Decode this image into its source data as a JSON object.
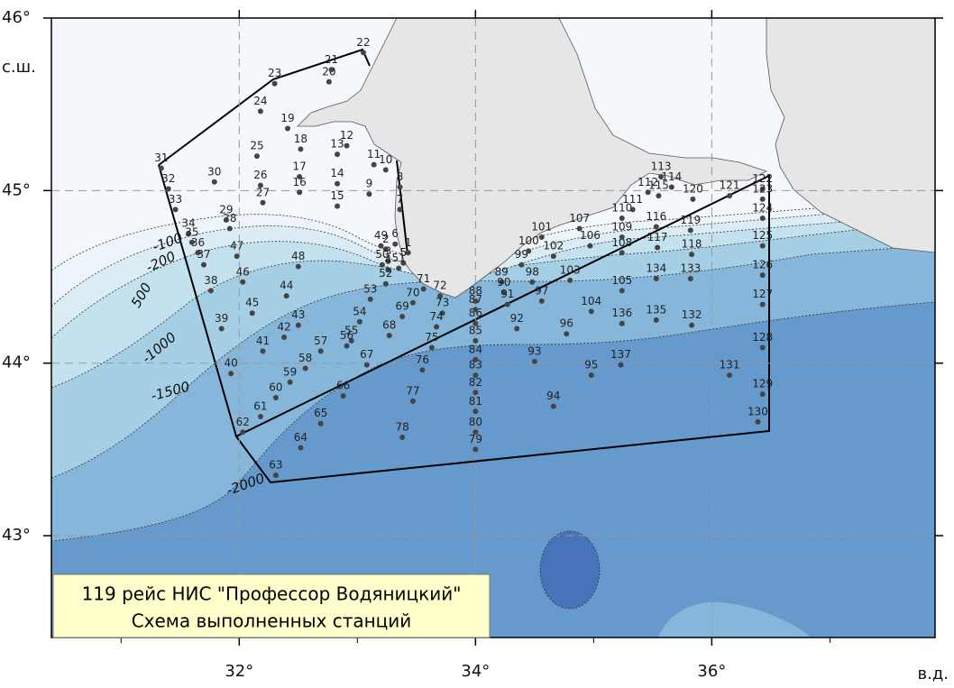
{
  "title_lines": [
    "119 рейс НИС \"Профессор Водяницкий\"",
    "Схема выполненных станций"
  ],
  "map": {
    "xlim": [
      30.41,
      37.89
    ],
    "ylim": [
      42.41,
      46.0
    ],
    "xticks": [
      {
        "value": 32,
        "label": "32°"
      },
      {
        "value": 34,
        "label": "34°"
      },
      {
        "value": 36,
        "label": "36°"
      }
    ],
    "yticks": [
      {
        "value": 43,
        "label": "43°"
      },
      {
        "value": 44,
        "label": "44°"
      },
      {
        "value": 45,
        "label": "45°"
      },
      {
        "value": 46,
        "label": "46°"
      }
    ],
    "x_minor_ticks": [
      31,
      33,
      35,
      37
    ],
    "x_label": "в.д.",
    "y_label": "с.ш.",
    "grid": true,
    "station_color": "#444"
  },
  "contour_labels": [
    "-100",
    "-200",
    "500",
    "-1000",
    "-1500",
    "-2000"
  ],
  "stations": [
    {
      "label": "1",
      "lon": 33.43,
      "lat": 44.64
    },
    {
      "label": "2",
      "lon": 33.24,
      "lat": 44.66
    },
    {
      "label": "3",
      "lon": 33.26,
      "lat": 44.59
    },
    {
      "label": "4",
      "lon": 33.26,
      "lat": 44.54
    },
    {
      "label": "5",
      "lon": 33.39,
      "lat": 44.58
    },
    {
      "label": "6",
      "lon": 33.32,
      "lat": 44.69
    },
    {
      "label": "7",
      "lon": 33.36,
      "lat": 44.89
    },
    {
      "label": "8",
      "lon": 33.36,
      "lat": 45.02
    },
    {
      "label": "9",
      "lon": 33.1,
      "lat": 44.98
    },
    {
      "label": "10",
      "lon": 33.24,
      "lat": 45.12
    },
    {
      "label": "11",
      "lon": 33.14,
      "lat": 45.15
    },
    {
      "label": "12",
      "lon": 32.91,
      "lat": 45.26
    },
    {
      "label": "13",
      "lon": 32.83,
      "lat": 45.21
    },
    {
      "label": "14",
      "lon": 32.83,
      "lat": 45.04
    },
    {
      "label": "15",
      "lon": 32.83,
      "lat": 44.91
    },
    {
      "label": "16",
      "lon": 32.51,
      "lat": 44.99
    },
    {
      "label": "17",
      "lon": 32.51,
      "lat": 45.08
    },
    {
      "label": "18",
      "lon": 32.52,
      "lat": 45.24
    },
    {
      "label": "19",
      "lon": 32.41,
      "lat": 45.36
    },
    {
      "label": "20",
      "lon": 32.76,
      "lat": 45.63
    },
    {
      "label": "21",
      "lon": 32.78,
      "lat": 45.7
    },
    {
      "label": "22",
      "lon": 33.05,
      "lat": 45.8
    },
    {
      "label": "23",
      "lon": 32.3,
      "lat": 45.62
    },
    {
      "label": "24",
      "lon": 32.18,
      "lat": 45.46
    },
    {
      "label": "25",
      "lon": 32.15,
      "lat": 45.2
    },
    {
      "label": "26",
      "lon": 32.18,
      "lat": 45.03
    },
    {
      "label": "27",
      "lon": 32.2,
      "lat": 44.93
    },
    {
      "label": "28",
      "lon": 31.92,
      "lat": 44.78
    },
    {
      "label": "29",
      "lon": 31.89,
      "lat": 44.83
    },
    {
      "label": "30",
      "lon": 31.79,
      "lat": 45.05
    },
    {
      "label": "31",
      "lon": 31.34,
      "lat": 45.13
    },
    {
      "label": "32",
      "lon": 31.4,
      "lat": 45.01
    },
    {
      "label": "33",
      "lon": 31.46,
      "lat": 44.89
    },
    {
      "label": "34",
      "lon": 31.57,
      "lat": 44.75
    },
    {
      "label": "35",
      "lon": 31.6,
      "lat": 44.7
    },
    {
      "label": "36",
      "lon": 31.65,
      "lat": 44.64
    },
    {
      "label": "37",
      "lon": 31.7,
      "lat": 44.57
    },
    {
      "label": "38",
      "lon": 31.76,
      "lat": 44.42
    },
    {
      "label": "39",
      "lon": 31.85,
      "lat": 44.2
    },
    {
      "label": "40",
      "lon": 31.93,
      "lat": 43.94
    },
    {
      "label": "41",
      "lon": 32.2,
      "lat": 44.07
    },
    {
      "label": "42",
      "lon": 32.38,
      "lat": 44.15
    },
    {
      "label": "43",
      "lon": 32.5,
      "lat": 44.22
    },
    {
      "label": "44",
      "lon": 32.4,
      "lat": 44.39
    },
    {
      "label": "45",
      "lon": 32.11,
      "lat": 44.29
    },
    {
      "label": "46",
      "lon": 32.03,
      "lat": 44.47
    },
    {
      "label": "47",
      "lon": 31.98,
      "lat": 44.62
    },
    {
      "label": "48",
      "lon": 32.5,
      "lat": 44.56
    },
    {
      "label": "49",
      "lon": 33.2,
      "lat": 44.68
    },
    {
      "label": "50",
      "lon": 33.21,
      "lat": 44.57
    },
    {
      "label": "51",
      "lon": 33.35,
      "lat": 44.55
    },
    {
      "label": "52",
      "lon": 33.24,
      "lat": 44.46
    },
    {
      "label": "53",
      "lon": 33.11,
      "lat": 44.37
    },
    {
      "label": "54",
      "lon": 33.02,
      "lat": 44.24
    },
    {
      "label": "55",
      "lon": 32.95,
      "lat": 44.13
    },
    {
      "label": "56",
      "lon": 32.91,
      "lat": 44.1
    },
    {
      "label": "57",
      "lon": 32.69,
      "lat": 44.07
    },
    {
      "label": "58",
      "lon": 32.56,
      "lat": 43.97
    },
    {
      "label": "59",
      "lon": 32.43,
      "lat": 43.89
    },
    {
      "label": "60",
      "lon": 32.31,
      "lat": 43.8
    },
    {
      "label": "61",
      "lon": 32.18,
      "lat": 43.69
    },
    {
      "label": "62",
      "lon": 32.03,
      "lat": 43.6
    },
    {
      "label": "63",
      "lon": 32.31,
      "lat": 43.35
    },
    {
      "label": "64",
      "lon": 32.52,
      "lat": 43.51
    },
    {
      "label": "65",
      "lon": 32.69,
      "lat": 43.65
    },
    {
      "label": "66",
      "lon": 32.88,
      "lat": 43.81
    },
    {
      "label": "67",
      "lon": 33.08,
      "lat": 43.99
    },
    {
      "label": "68",
      "lon": 33.27,
      "lat": 44.16
    },
    {
      "label": "69",
      "lon": 33.38,
      "lat": 44.27
    },
    {
      "label": "70",
      "lon": 33.47,
      "lat": 44.35
    },
    {
      "label": "71",
      "lon": 33.56,
      "lat": 44.43
    },
    {
      "label": "72",
      "lon": 33.7,
      "lat": 44.39
    },
    {
      "label": "73",
      "lon": 33.72,
      "lat": 44.29
    },
    {
      "label": "74",
      "lon": 33.67,
      "lat": 44.21
    },
    {
      "label": "75",
      "lon": 33.63,
      "lat": 44.09
    },
    {
      "label": "76",
      "lon": 33.55,
      "lat": 43.96
    },
    {
      "label": "77",
      "lon": 33.47,
      "lat": 43.78
    },
    {
      "label": "78",
      "lon": 33.38,
      "lat": 43.57
    },
    {
      "label": "79",
      "lon": 34.0,
      "lat": 43.5
    },
    {
      "label": "80",
      "lon": 34.0,
      "lat": 43.6
    },
    {
      "label": "81",
      "lon": 34.0,
      "lat": 43.72
    },
    {
      "label": "82",
      "lon": 34.0,
      "lat": 43.83
    },
    {
      "label": "83",
      "lon": 34.0,
      "lat": 43.93
    },
    {
      "label": "84",
      "lon": 34.0,
      "lat": 44.02
    },
    {
      "label": "85",
      "lon": 34.0,
      "lat": 44.13
    },
    {
      "label": "86",
      "lon": 34.0,
      "lat": 44.23
    },
    {
      "label": "87",
      "lon": 34.0,
      "lat": 44.31
    },
    {
      "label": "88",
      "lon": 34.0,
      "lat": 44.36
    },
    {
      "label": "89",
      "lon": 34.22,
      "lat": 44.47
    },
    {
      "label": "90",
      "lon": 34.24,
      "lat": 44.41
    },
    {
      "label": "91",
      "lon": 34.27,
      "lat": 44.34
    },
    {
      "label": "92",
      "lon": 34.35,
      "lat": 44.2
    },
    {
      "label": "93",
      "lon": 34.5,
      "lat": 44.01
    },
    {
      "label": "94",
      "lon": 34.66,
      "lat": 43.75
    },
    {
      "label": "95",
      "lon": 34.98,
      "lat": 43.93
    },
    {
      "label": "96",
      "lon": 34.77,
      "lat": 44.17
    },
    {
      "label": "97",
      "lon": 34.56,
      "lat": 44.36
    },
    {
      "label": "98",
      "lon": 34.48,
      "lat": 44.47
    },
    {
      "label": "99",
      "lon": 34.39,
      "lat": 44.57
    },
    {
      "label": "100",
      "lon": 34.45,
      "lat": 44.65
    },
    {
      "label": "101",
      "lon": 34.56,
      "lat": 44.73
    },
    {
      "label": "102",
      "lon": 34.66,
      "lat": 44.62
    },
    {
      "label": "103",
      "lon": 34.8,
      "lat": 44.48
    },
    {
      "label": "104",
      "lon": 34.98,
      "lat": 44.3
    },
    {
      "label": "105",
      "lon": 35.24,
      "lat": 44.42
    },
    {
      "label": "106",
      "lon": 34.97,
      "lat": 44.68
    },
    {
      "label": "107",
      "lon": 34.88,
      "lat": 44.78
    },
    {
      "label": "108",
      "lon": 35.24,
      "lat": 44.64
    },
    {
      "label": "109",
      "lon": 35.24,
      "lat": 44.73
    },
    {
      "label": "110",
      "lon": 35.24,
      "lat": 44.84
    },
    {
      "label": "111",
      "lon": 35.33,
      "lat": 44.89
    },
    {
      "label": "112",
      "lon": 35.46,
      "lat": 44.99
    },
    {
      "label": "113",
      "lon": 35.57,
      "lat": 45.08
    },
    {
      "label": "114",
      "lon": 35.66,
      "lat": 45.02
    },
    {
      "label": "115",
      "lon": 35.55,
      "lat": 44.97
    },
    {
      "label": "116",
      "lon": 35.53,
      "lat": 44.79
    },
    {
      "label": "117",
      "lon": 35.54,
      "lat": 44.67
    },
    {
      "label": "118",
      "lon": 35.83,
      "lat": 44.63
    },
    {
      "label": "119",
      "lon": 35.82,
      "lat": 44.77
    },
    {
      "label": "120",
      "lon": 35.84,
      "lat": 44.95
    },
    {
      "label": "121",
      "lon": 36.15,
      "lat": 44.97
    },
    {
      "label": "122",
      "lon": 36.43,
      "lat": 45.01
    },
    {
      "label": "123",
      "lon": 36.43,
      "lat": 44.95
    },
    {
      "label": "124",
      "lon": 36.43,
      "lat": 44.84
    },
    {
      "label": "125",
      "lon": 36.43,
      "lat": 44.68
    },
    {
      "label": "126",
      "lon": 36.43,
      "lat": 44.51
    },
    {
      "label": "127",
      "lon": 36.43,
      "lat": 44.34
    },
    {
      "label": "128",
      "lon": 36.43,
      "lat": 44.09
    },
    {
      "label": "129",
      "lon": 36.43,
      "lat": 43.82
    },
    {
      "label": "130",
      "lon": 36.39,
      "lat": 43.66
    },
    {
      "label": "131",
      "lon": 36.15,
      "lat": 43.93
    },
    {
      "label": "132",
      "lon": 35.83,
      "lat": 44.22
    },
    {
      "label": "133",
      "lon": 35.82,
      "lat": 44.49
    },
    {
      "label": "134",
      "lon": 35.53,
      "lat": 44.49
    },
    {
      "label": "135",
      "lon": 35.53,
      "lat": 44.25
    },
    {
      "label": "136",
      "lon": 35.24,
      "lat": 44.23
    },
    {
      "label": "137",
      "lon": 35.23,
      "lat": 43.99
    }
  ]
}
